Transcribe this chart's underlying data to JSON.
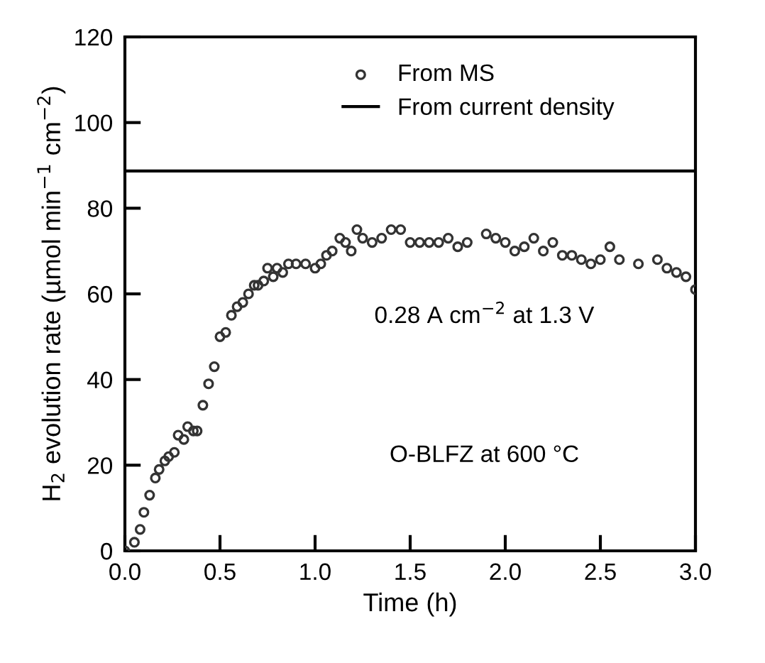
{
  "chart_data": {
    "type": "scatter",
    "xlabel": "Time (h)",
    "ylabel": "H$_{2}$ evolution rate (µmol min$^{−1}$ cm$^{−2}$)",
    "xlim": [
      0,
      3.0
    ],
    "ylim": [
      0,
      120
    ],
    "xticks": [
      {
        "value": 0,
        "label": "0.0"
      },
      0.5,
      {
        "value": 1,
        "label": "1.0"
      },
      1.5,
      {
        "value": 2,
        "label": "2.0"
      },
      2.5,
      {
        "value": 3,
        "label": "3.0"
      }
    ],
    "yticks": [
      0,
      20,
      40,
      60,
      80,
      100,
      120
    ],
    "grid": false,
    "legend": "top",
    "annotations": [
      "0.28 A cm$^{−2}$ at 1.3 V",
      "O-BLFZ at 600 °C"
    ],
    "series": [
      {
        "name": "From MS",
        "marker": "circle",
        "color": "#333333",
        "x": [
          0,
          0.05,
          0.08,
          0.1,
          0.13,
          0.16,
          0.18,
          0.21,
          0.23,
          0.26,
          0.28,
          0.31,
          0.33,
          0.36,
          0.38,
          0.41,
          0.44,
          0.47,
          0.5,
          0.53,
          0.56,
          0.59,
          0.62,
          0.65,
          0.68,
          0.7,
          0.73,
          0.75,
          0.78,
          0.8,
          0.83,
          0.86,
          0.9,
          0.95,
          1.0,
          1.03,
          1.06,
          1.09,
          1.13,
          1.16,
          1.19,
          1.22,
          1.25,
          1.3,
          1.35,
          1.4,
          1.45,
          1.5,
          1.55,
          1.6,
          1.65,
          1.7,
          1.75,
          1.8,
          1.9,
          1.95,
          2.0,
          2.05,
          2.1,
          2.15,
          2.2,
          2.25,
          2.3,
          2.35,
          2.4,
          2.45,
          2.5,
          2.55,
          2.6,
          2.7,
          2.8,
          2.85,
          2.9,
          2.95,
          3.0
        ],
        "values": [
          0,
          2,
          5,
          9,
          13,
          17,
          19,
          21,
          22,
          23,
          27,
          26,
          29,
          28,
          28,
          34,
          39,
          43,
          50,
          51,
          55,
          57,
          58,
          60,
          62,
          62,
          63,
          66,
          64,
          66,
          65,
          67,
          67,
          67,
          66,
          67,
          69,
          70,
          73,
          72,
          70,
          75,
          73,
          72,
          73,
          75,
          75,
          72,
          72,
          72,
          72,
          73,
          71,
          72,
          74,
          73,
          72,
          70,
          71,
          73,
          70,
          72,
          69,
          69,
          68,
          67,
          68,
          71,
          68,
          67,
          68,
          66,
          65,
          64,
          61
        ]
      },
      {
        "name": "From current density",
        "type": "line",
        "line_style": "solid",
        "color": "#000000",
        "x": [
          0,
          3.0
        ],
        "values": [
          88.7,
          88.7
        ]
      }
    ]
  }
}
